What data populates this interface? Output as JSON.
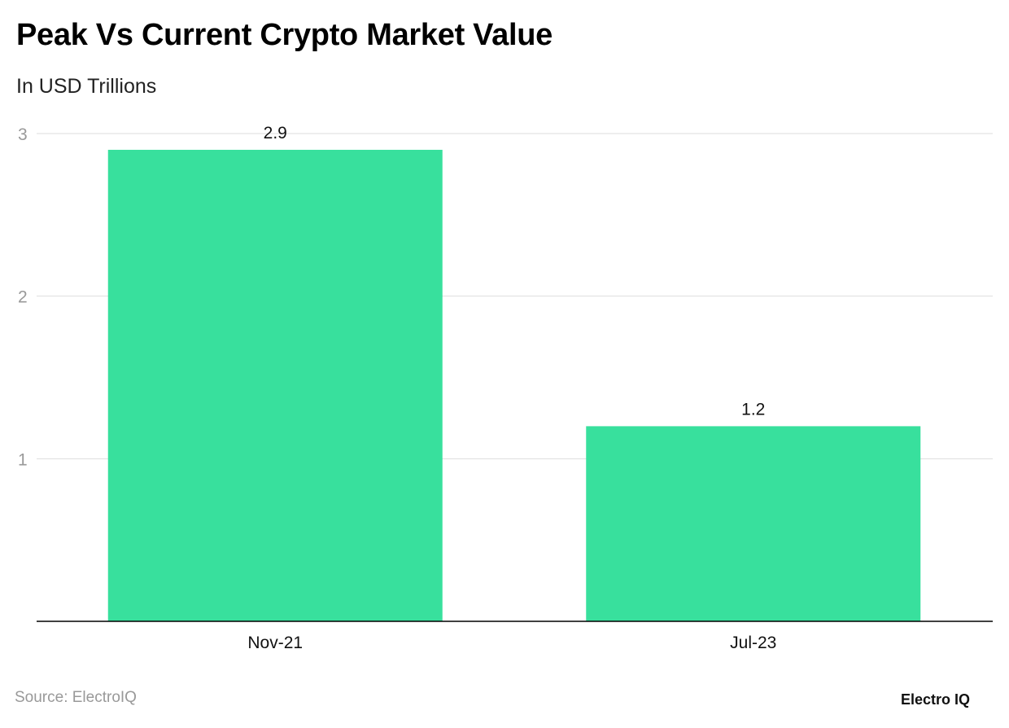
{
  "title": "Peak Vs Current Crypto Market Value",
  "subtitle": "In USD Trillions",
  "source": "Source: ElectroIQ",
  "logo": "Electro IQ",
  "colors": {
    "bar": "#38e09d",
    "grid": "#dddddd",
    "axis": "#000000"
  },
  "chart_data": {
    "type": "bar",
    "title": "Peak Vs Current Crypto Market Value",
    "subtitle": "In USD Trillions",
    "categories": [
      "Nov-21",
      "Jul-23"
    ],
    "values": [
      2.9,
      1.2
    ],
    "data_labels": [
      "2.9",
      "1.2"
    ],
    "yticks": [
      "1",
      "2",
      "3"
    ],
    "ylim": [
      0,
      3
    ],
    "grid": true,
    "xlabel": "",
    "ylabel": ""
  }
}
